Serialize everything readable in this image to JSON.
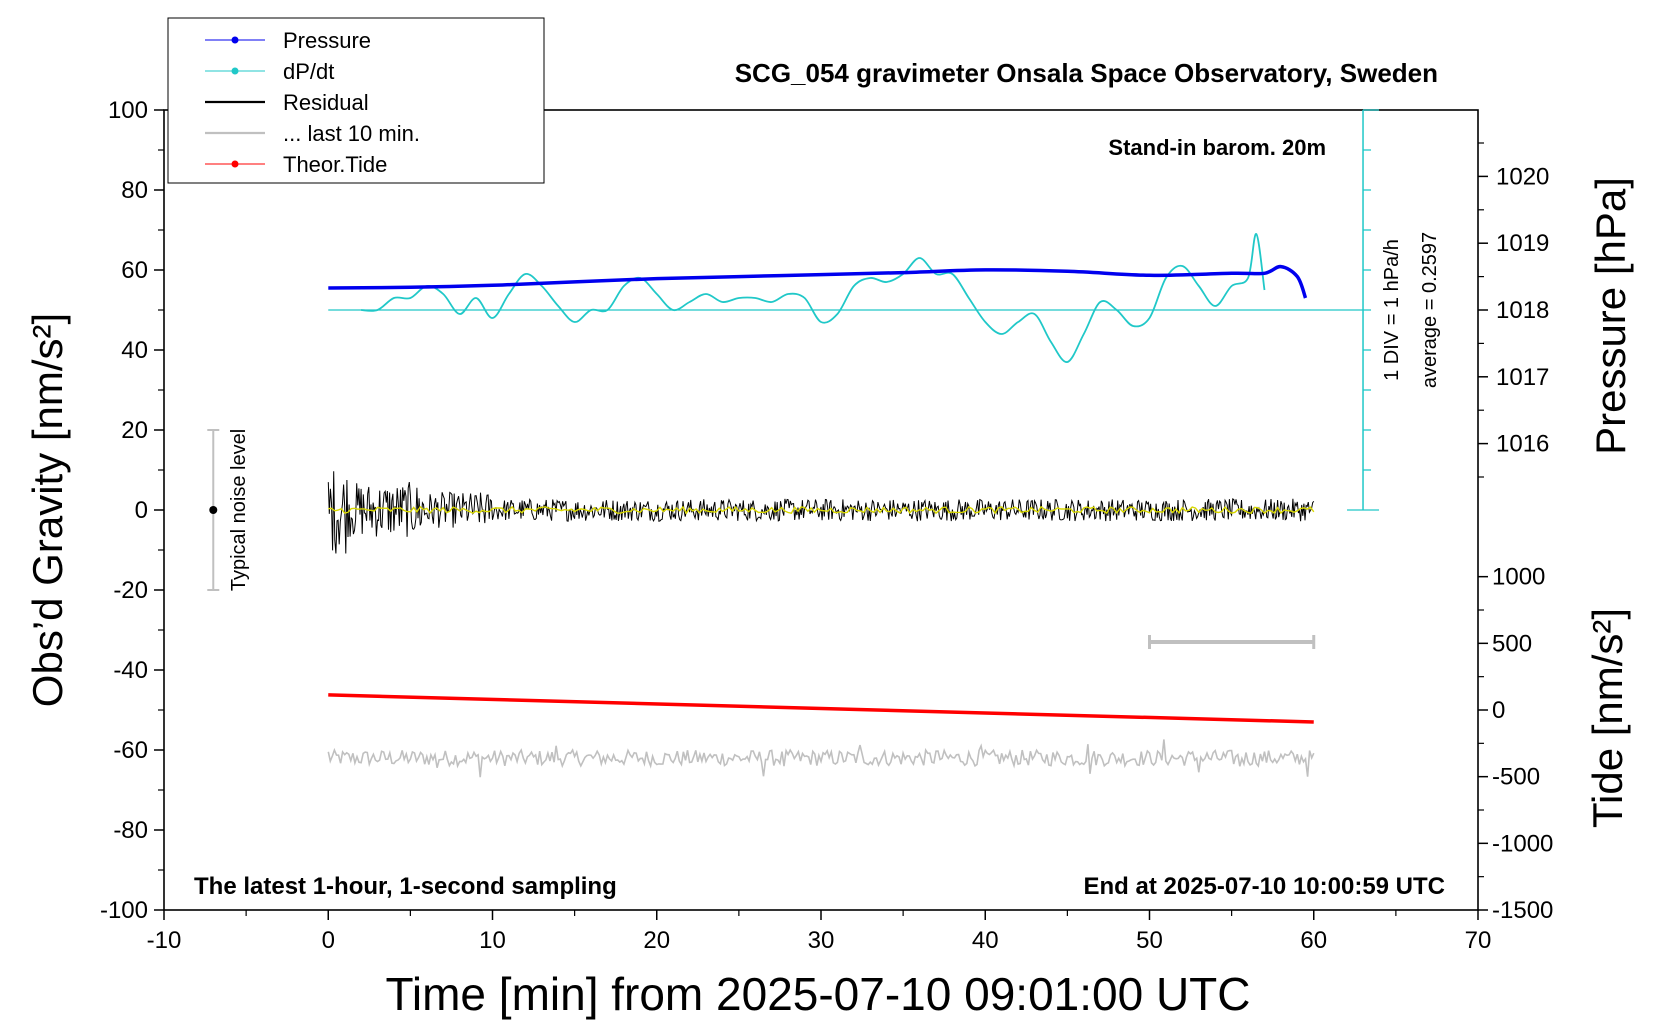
{
  "chart_data": {
    "type": "line",
    "title": "SCG_054 gravimeter Onsala Space Observatory, Sweden",
    "xlabel": "Time [min] from 2025-07-10 09:01:00 UTC",
    "ylabel_left": "Obs’d Gravity [nm/s²]",
    "ylabel_right_top": "Pressure [hPa]",
    "ylabel_right_bottom": "Tide [nm/s²]",
    "xlim": [
      -10,
      70
    ],
    "ylim_left": [
      -100,
      100
    ],
    "xticks": [
      -10,
      0,
      10,
      20,
      30,
      40,
      50,
      60,
      70
    ],
    "yticks_left": [
      -100,
      -80,
      -60,
      -40,
      -20,
      0,
      20,
      40,
      60,
      80,
      100
    ],
    "pressure_axis": {
      "ticks": [
        1016,
        1017,
        1018,
        1019,
        1020
      ]
    },
    "tide_axis": {
      "ticks": [
        -1500,
        -1000,
        -500,
        0,
        500,
        1000
      ]
    },
    "annotations": {
      "stand_in": "Stand-in barom. 20m",
      "div_label": "1 DIV = 1 hPa/h",
      "average_label": "average = 0.2597",
      "noise_label": "Typical noise level",
      "bottom_left": "The latest 1-hour, 1-second sampling",
      "bottom_right": "End at 2025-07-10 10:00:59 UTC"
    },
    "legend": {
      "placement": "top-left",
      "entries": [
        {
          "label": "Pressure",
          "color": "#0000ee",
          "marker": true
        },
        {
          "label": "dP/dt",
          "color": "#20c8c8",
          "marker": true
        },
        {
          "label": "Residual",
          "color": "#000000",
          "marker": false
        },
        {
          "label": "... last 10 min.",
          "color": "#c0c0c0",
          "marker": false
        },
        {
          "label": "Theor.Tide",
          "color": "#ff0000",
          "marker": true
        }
      ]
    },
    "series": [
      {
        "name": "Pressure",
        "color": "#0000ee",
        "axis": "pressure_hPa",
        "x": [
          0,
          5,
          10,
          15,
          20,
          25,
          30,
          35,
          40,
          45,
          50,
          55,
          57,
          58,
          59,
          59.5
        ],
        "y": [
          1018.33,
          1018.34,
          1018.37,
          1018.42,
          1018.47,
          1018.5,
          1018.53,
          1018.56,
          1018.6,
          1018.58,
          1018.52,
          1018.55,
          1018.55,
          1018.65,
          1018.5,
          1018.18
        ]
      },
      {
        "name": "dP/dt",
        "color": "#20c8c8",
        "axis": "gravity_scale",
        "x": [
          2,
          3,
          4,
          5,
          6,
          7,
          8,
          9,
          10,
          11,
          12,
          13,
          14,
          15,
          16,
          17,
          18,
          19,
          20,
          21,
          22,
          23,
          24,
          25,
          26,
          27,
          28,
          29,
          30,
          31,
          32,
          33,
          34,
          35,
          36,
          37,
          38,
          39,
          40,
          41,
          42,
          43,
          44,
          45,
          46,
          47,
          48,
          49,
          50,
          51,
          52,
          53,
          54,
          55,
          56,
          56.5,
          57
        ],
        "y": [
          50,
          50,
          53,
          53,
          56,
          54,
          49,
          53,
          48,
          54,
          59,
          56,
          51,
          47,
          50,
          50,
          56,
          58,
          54,
          50,
          52,
          54,
          52,
          53,
          53,
          52,
          54,
          53,
          47,
          49,
          56,
          58,
          57,
          59,
          63,
          59,
          59,
          53,
          47,
          44,
          47,
          49,
          42,
          37,
          44,
          52,
          50,
          46,
          48,
          58,
          61,
          56,
          51,
          56,
          58,
          69,
          55
        ]
      },
      {
        "name": "Residual",
        "color": "#000000",
        "x_range": [
          0,
          60
        ],
        "y_range_approx": [
          -13,
          12
        ]
      },
      {
        "name": "... last 10 min.",
        "color": "#c0c0c0",
        "x_range": [
          0,
          60
        ],
        "y_center": -62
      },
      {
        "name": "Theor.Tide",
        "color": "#ff0000",
        "axis": "tide",
        "x": [
          0,
          60
        ],
        "y": [
          113,
          -90
        ]
      }
    ],
    "grid": false
  }
}
